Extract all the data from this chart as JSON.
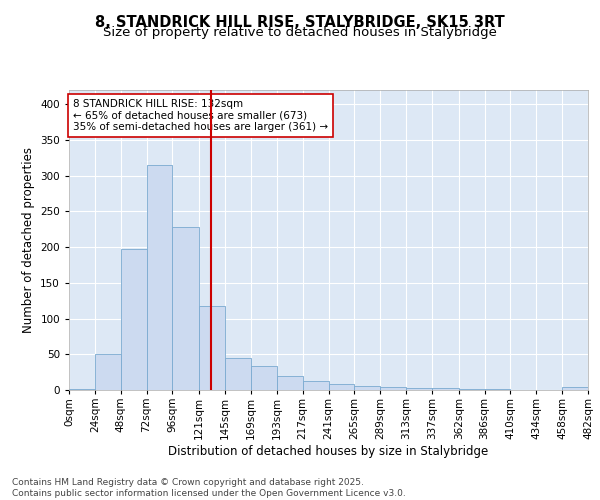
{
  "title_line1": "8, STANDRICK HILL RISE, STALYBRIDGE, SK15 3RT",
  "title_line2": "Size of property relative to detached houses in Stalybridge",
  "xlabel": "Distribution of detached houses by size in Stalybridge",
  "ylabel": "Number of detached properties",
  "bar_color": "#ccdaf0",
  "bar_edge_color": "#7aaad0",
  "background_color": "#dde8f5",
  "grid_color": "#ffffff",
  "vline_x": 132,
  "vline_color": "#cc0000",
  "bin_edges": [
    0,
    24,
    48,
    72,
    96,
    121,
    145,
    169,
    193,
    217,
    241,
    265,
    289,
    313,
    337,
    362,
    386,
    410,
    434,
    458,
    482
  ],
  "bin_labels": [
    "0sqm",
    "24sqm",
    "48sqm",
    "72sqm",
    "96sqm",
    "121sqm",
    "145sqm",
    "169sqm",
    "193sqm",
    "217sqm",
    "241sqm",
    "265sqm",
    "289sqm",
    "313sqm",
    "337sqm",
    "362sqm",
    "386sqm",
    "410sqm",
    "434sqm",
    "458sqm",
    "482sqm"
  ],
  "bar_heights": [
    2,
    50,
    197,
    315,
    228,
    117,
    45,
    33,
    20,
    12,
    8,
    5,
    4,
    3,
    3,
    1,
    1,
    0,
    0,
    4
  ],
  "ylim": [
    0,
    420
  ],
  "yticks": [
    0,
    50,
    100,
    150,
    200,
    250,
    300,
    350,
    400
  ],
  "annotation_text": "8 STANDRICK HILL RISE: 132sqm\n← 65% of detached houses are smaller (673)\n35% of semi-detached houses are larger (361) →",
  "annotation_box_color": "white",
  "annotation_box_edgecolor": "#cc0000",
  "footer_text": "Contains HM Land Registry data © Crown copyright and database right 2025.\nContains public sector information licensed under the Open Government Licence v3.0.",
  "title_fontsize": 10.5,
  "subtitle_fontsize": 9.5,
  "axis_label_fontsize": 8.5,
  "tick_fontsize": 7.5,
  "annotation_fontsize": 7.5,
  "footer_fontsize": 6.5
}
